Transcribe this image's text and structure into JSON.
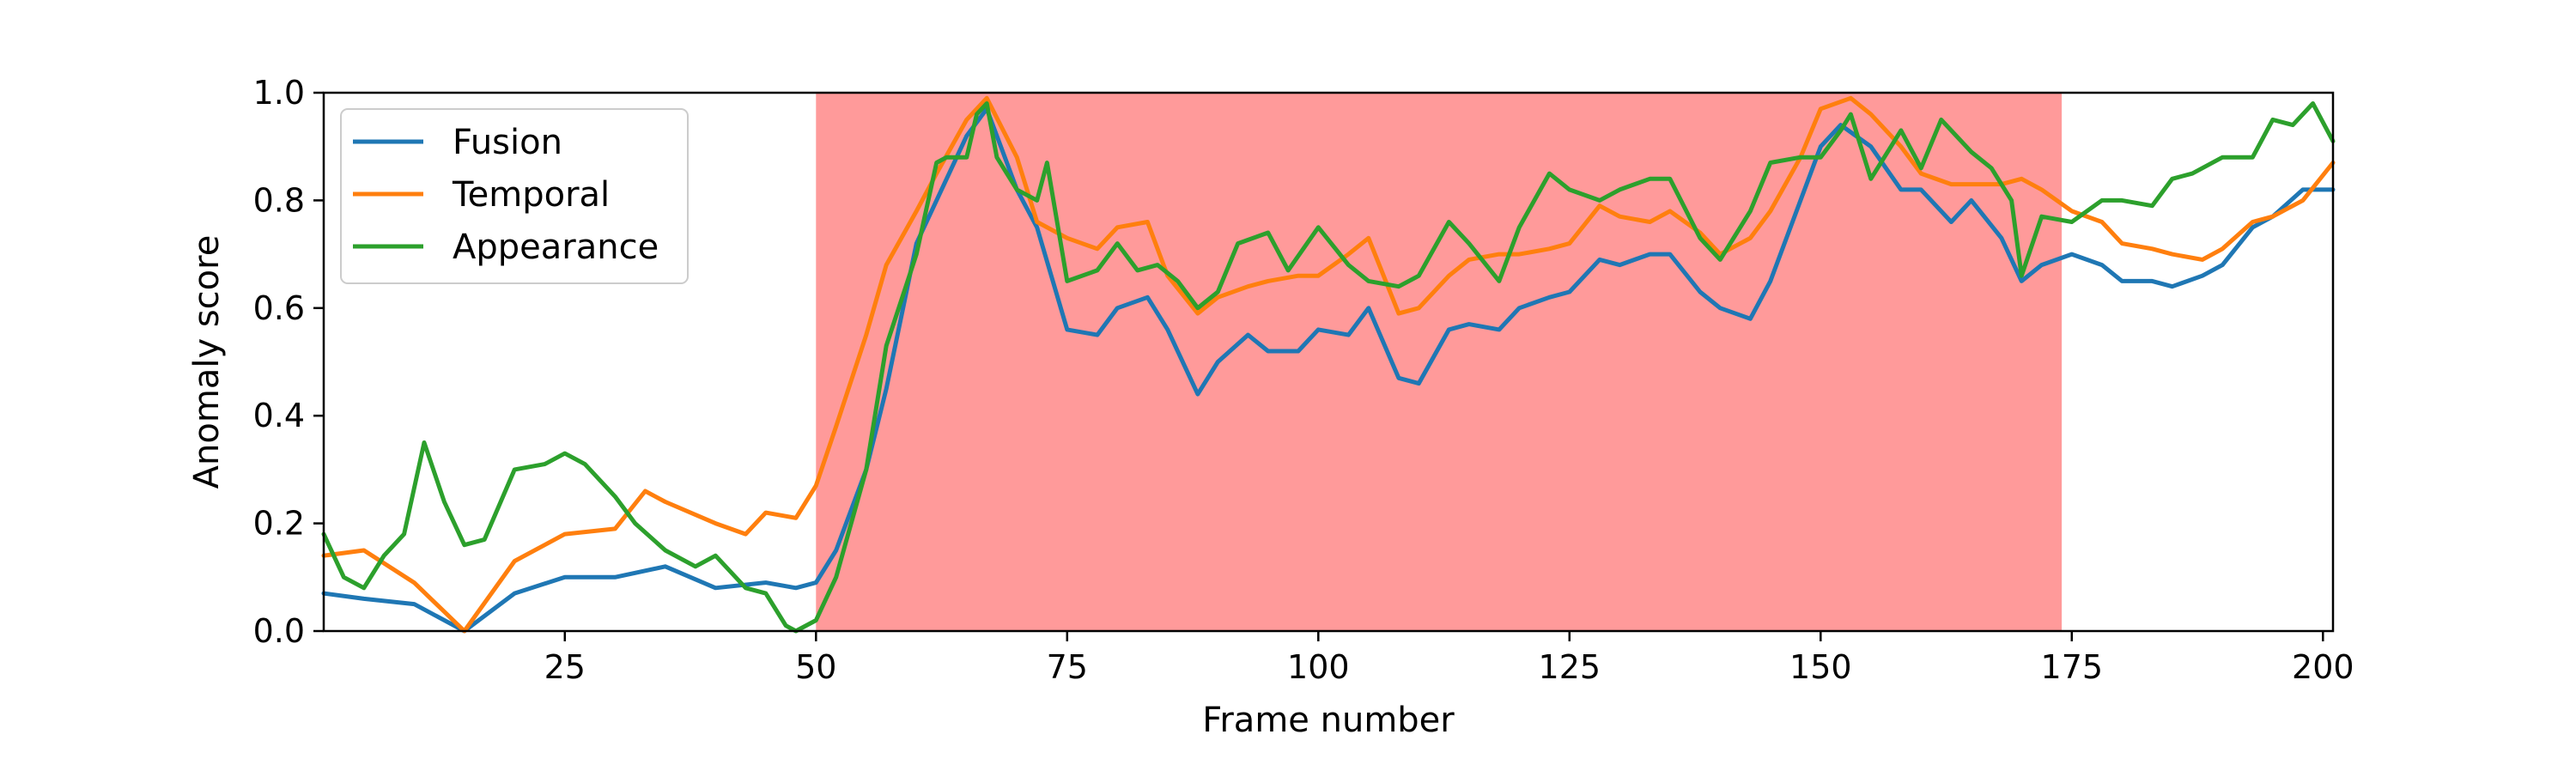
{
  "chart_data": {
    "type": "line",
    "title": "",
    "xlabel": "Frame number",
    "ylabel": "Anomaly score",
    "xlim": [
      1,
      201
    ],
    "ylim": [
      0.0,
      1.0
    ],
    "xticks": [
      25,
      50,
      75,
      100,
      125,
      150,
      175,
      200
    ],
    "yticks": [
      0.0,
      0.2,
      0.4,
      0.6,
      0.8,
      1.0
    ],
    "xtick_labels": [
      "25",
      "50",
      "75",
      "100",
      "125",
      "150",
      "175",
      "200"
    ],
    "ytick_labels": [
      "0.0",
      "0.2",
      "0.4",
      "0.6",
      "0.8",
      "1.0"
    ],
    "grid": false,
    "legend_position": "top-left",
    "shaded_region": {
      "x_start": 50,
      "x_end": 174,
      "color": "#ff9a9a"
    },
    "series": [
      {
        "name": "Fusion",
        "color": "#1f77b4",
        "x": [
          1,
          5,
          10,
          15,
          20,
          25,
          30,
          35,
          40,
          45,
          48,
          50,
          52,
          55,
          57,
          60,
          62,
          65,
          67,
          70,
          72,
          75,
          78,
          80,
          83,
          85,
          88,
          90,
          93,
          95,
          98,
          100,
          103,
          105,
          108,
          110,
          113,
          115,
          118,
          120,
          123,
          125,
          128,
          130,
          133,
          135,
          138,
          140,
          143,
          145,
          148,
          150,
          152,
          155,
          158,
          160,
          163,
          165,
          168,
          170,
          172,
          175,
          178,
          180,
          183,
          185,
          188,
          190,
          193,
          195,
          198,
          201
        ],
        "y": [
          0.07,
          0.06,
          0.05,
          0.0,
          0.07,
          0.1,
          0.1,
          0.12,
          0.08,
          0.09,
          0.08,
          0.09,
          0.15,
          0.3,
          0.45,
          0.72,
          0.8,
          0.92,
          0.97,
          0.82,
          0.75,
          0.56,
          0.55,
          0.6,
          0.62,
          0.56,
          0.44,
          0.5,
          0.55,
          0.52,
          0.52,
          0.56,
          0.55,
          0.6,
          0.47,
          0.46,
          0.56,
          0.57,
          0.56,
          0.6,
          0.62,
          0.63,
          0.69,
          0.68,
          0.7,
          0.7,
          0.63,
          0.6,
          0.58,
          0.65,
          0.8,
          0.9,
          0.94,
          0.9,
          0.82,
          0.82,
          0.76,
          0.8,
          0.73,
          0.65,
          0.68,
          0.7,
          0.68,
          0.65,
          0.65,
          0.64,
          0.66,
          0.68,
          0.75,
          0.77,
          0.82,
          0.82
        ]
      },
      {
        "name": "Temporal",
        "color": "#ff7f0e",
        "x": [
          1,
          5,
          10,
          15,
          20,
          25,
          30,
          33,
          35,
          40,
          43,
          45,
          48,
          50,
          52,
          55,
          57,
          60,
          62,
          65,
          67,
          70,
          72,
          75,
          78,
          80,
          83,
          85,
          88,
          90,
          93,
          95,
          98,
          100,
          103,
          105,
          108,
          110,
          113,
          115,
          118,
          120,
          123,
          125,
          128,
          130,
          133,
          135,
          138,
          140,
          143,
          145,
          148,
          150,
          153,
          155,
          158,
          160,
          163,
          165,
          168,
          170,
          172,
          175,
          178,
          180,
          183,
          185,
          188,
          190,
          193,
          195,
          198,
          201
        ],
        "y": [
          0.14,
          0.15,
          0.09,
          0.0,
          0.13,
          0.18,
          0.19,
          0.26,
          0.24,
          0.2,
          0.18,
          0.22,
          0.21,
          0.27,
          0.38,
          0.55,
          0.68,
          0.78,
          0.85,
          0.95,
          0.99,
          0.88,
          0.76,
          0.73,
          0.71,
          0.75,
          0.76,
          0.66,
          0.59,
          0.62,
          0.64,
          0.65,
          0.66,
          0.66,
          0.7,
          0.73,
          0.59,
          0.6,
          0.66,
          0.69,
          0.7,
          0.7,
          0.71,
          0.72,
          0.79,
          0.77,
          0.76,
          0.78,
          0.74,
          0.7,
          0.73,
          0.78,
          0.88,
          0.97,
          0.99,
          0.96,
          0.9,
          0.85,
          0.83,
          0.83,
          0.83,
          0.84,
          0.82,
          0.78,
          0.76,
          0.72,
          0.71,
          0.7,
          0.69,
          0.71,
          0.76,
          0.77,
          0.8,
          0.87
        ]
      },
      {
        "name": "Appearance",
        "color": "#2ca02c",
        "x": [
          1,
          3,
          5,
          7,
          9,
          11,
          13,
          15,
          17,
          20,
          23,
          25,
          27,
          30,
          32,
          35,
          38,
          40,
          43,
          45,
          47,
          48,
          50,
          52,
          55,
          57,
          60,
          62,
          63,
          65,
          66,
          67,
          68,
          70,
          72,
          73,
          75,
          78,
          80,
          82,
          84,
          86,
          88,
          90,
          92,
          95,
          97,
          100,
          103,
          105,
          108,
          110,
          113,
          115,
          118,
          120,
          123,
          125,
          128,
          130,
          133,
          135,
          138,
          140,
          143,
          145,
          148,
          150,
          152,
          153,
          155,
          158,
          160,
          162,
          165,
          167,
          169,
          170,
          172,
          175,
          178,
          180,
          183,
          185,
          187,
          190,
          193,
          195,
          197,
          199,
          201
        ],
        "y": [
          0.18,
          0.1,
          0.08,
          0.14,
          0.18,
          0.35,
          0.24,
          0.16,
          0.17,
          0.3,
          0.31,
          0.33,
          0.31,
          0.25,
          0.2,
          0.15,
          0.12,
          0.14,
          0.08,
          0.07,
          0.01,
          0.0,
          0.02,
          0.1,
          0.3,
          0.53,
          0.7,
          0.87,
          0.88,
          0.88,
          0.96,
          0.98,
          0.88,
          0.82,
          0.8,
          0.87,
          0.65,
          0.67,
          0.72,
          0.67,
          0.68,
          0.65,
          0.6,
          0.63,
          0.72,
          0.74,
          0.67,
          0.75,
          0.68,
          0.65,
          0.64,
          0.66,
          0.76,
          0.72,
          0.65,
          0.75,
          0.85,
          0.82,
          0.8,
          0.82,
          0.84,
          0.84,
          0.73,
          0.69,
          0.78,
          0.87,
          0.88,
          0.88,
          0.93,
          0.96,
          0.84,
          0.93,
          0.86,
          0.95,
          0.89,
          0.86,
          0.8,
          0.66,
          0.77,
          0.76,
          0.8,
          0.8,
          0.79,
          0.84,
          0.85,
          0.88,
          0.88,
          0.95,
          0.94,
          0.98,
          0.91
        ]
      }
    ]
  }
}
